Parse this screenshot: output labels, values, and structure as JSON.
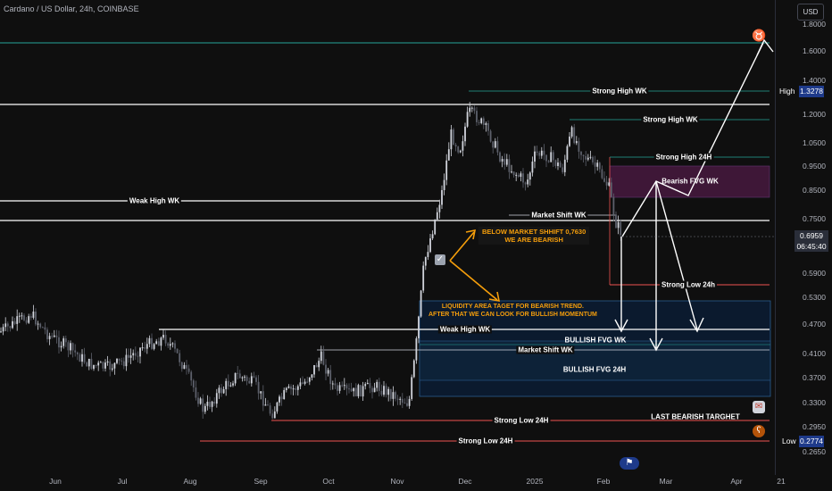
{
  "header": {
    "title": "Cardano / US Dollar, 24h, COINBASE",
    "currency_button": "USD"
  },
  "price_axis": {
    "ticks": [
      "1.8000",
      "1.6000",
      "1.4000",
      "1.2000",
      "1.0500",
      "0.9500",
      "0.8500",
      "0.7500",
      "0.5900",
      "0.5300",
      "0.4700",
      "0.4100",
      "0.3700",
      "0.3300",
      "0.2950",
      "0.2650"
    ],
    "high_label": "High",
    "high_value": "1.3278",
    "low_label": "Low",
    "low_value": "0.2774",
    "current_price": "0.6959",
    "countdown": "06:45:40"
  },
  "time_axis": {
    "ticks": [
      "Jun",
      "Jul",
      "Aug",
      "Sep",
      "Oct",
      "Nov",
      "Dec",
      "2025",
      "Feb",
      "Mar",
      "Apr",
      "21"
    ]
  },
  "levels": {
    "strong_high_wk_1": "Strong High WK",
    "strong_high_wk_2": "Strong High WK",
    "strong_high_24h": "Strong High 24H",
    "bearish_fvg_wk": "Bearish FVG WK",
    "weak_high_wk_top": "Weak High WK",
    "market_shift_wk_top": "Market Shift WK",
    "strong_low_24h_right": "Strong Low 24h",
    "weak_high_wk_bottom": "Weak High WK",
    "bullish_fvg_wk": "BULLISH FVG WK",
    "market_shift_wk_bottom": "Market Shift WK",
    "bullish_fvg_24h": "BULLISH FVG 24H",
    "last_bearish_target": "LAST BEARISH TARGHET",
    "strong_low_24h_1": "Strong Low 24H",
    "strong_low_24h_2": "Strong Low 24H"
  },
  "annotations": {
    "bearish_note_line1": "BELOW MARKET SHHIFT 0,7630",
    "bearish_note_line2": "WE ARE BEARISH",
    "liquidity_note_line1": "LIQUIDITY AREA TAGET FOR BEARISH TREND.",
    "liquidity_note_line2": "AFTER THAT WE CAN LOOK FOR BULLISH MOMENTUM",
    "check_icon": "check-mark-icon"
  },
  "colors": {
    "up_candle": "#d1d4dc",
    "down_candle": "#5d606b",
    "teal_line": "#26a69a",
    "red_line": "#ef5350",
    "annotation_orange": "#f59e0b",
    "bearish_fvg_fill": "#4a1942",
    "bullish_fvg_fill": "#0b1a2e",
    "axis_badge_blue": "#1e3a8a"
  }
}
